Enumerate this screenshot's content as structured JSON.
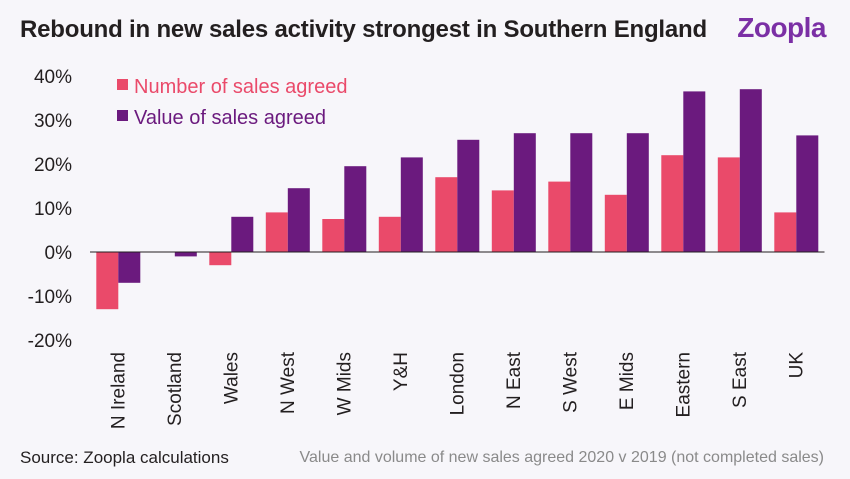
{
  "title": "Rebound in new sales activity strongest in Southern England",
  "logo_text": "Zoopla",
  "source": "Source: Zoopla calculations",
  "note": "Value and volume of new sales agreed 2020 v 2019 (not completed sales)",
  "colors": {
    "number": "#ea4a6a",
    "value": "#6b1a7e",
    "logo": "#7b2fa5"
  },
  "chart_data": {
    "type": "bar",
    "categories": [
      "N Ireland",
      "Scotland",
      "Wales",
      "N West",
      "W Mids",
      "Y&H",
      "London",
      "N East",
      "S West",
      "E Mids",
      "Eastern",
      "S East",
      "UK"
    ],
    "series": [
      {
        "name": "Number of sales agreed",
        "values": [
          -13,
          0,
          -3,
          9,
          7.5,
          8,
          17,
          14,
          16,
          13,
          22,
          21.5,
          9
        ]
      },
      {
        "name": "Value of sales agreed",
        "values": [
          -7,
          -1,
          8,
          14.5,
          19.5,
          21.5,
          25.5,
          27,
          27,
          27,
          36.5,
          37,
          26.5
        ]
      }
    ],
    "ylim": [
      -20,
      40
    ],
    "yticks": [
      "40%",
      "30%",
      "20%",
      "10%",
      "0%",
      "-10%",
      "-20%"
    ],
    "legend_position": "top-left",
    "grid": false
  }
}
